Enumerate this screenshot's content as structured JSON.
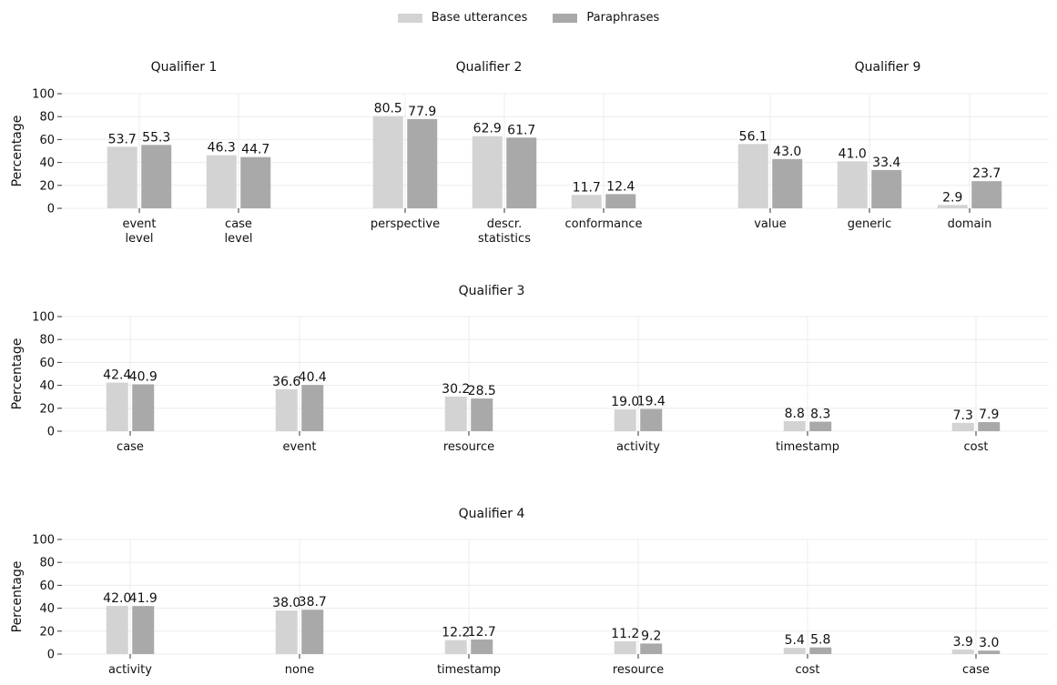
{
  "legend": {
    "base_label": "Base utterances",
    "para_label": "Paraphrases",
    "base_color": "#d3d3d3",
    "para_color": "#a9a9a9"
  },
  "chart_data": [
    {
      "type": "bar",
      "title": "Qualifier 1",
      "ylabel": "Percentage",
      "ylim": [
        0,
        100
      ],
      "yticks": [
        0,
        20,
        40,
        60,
        80,
        100
      ],
      "categories": [
        "event\nlevel",
        "case\nlevel"
      ],
      "series": [
        {
          "name": "Base utterances",
          "values": [
            53.7,
            46.3
          ],
          "labels": [
            "53.7",
            "46.3"
          ]
        },
        {
          "name": "Paraphrases",
          "values": [
            55.3,
            44.7
          ],
          "labels": [
            "55.3",
            "44.7"
          ]
        }
      ]
    },
    {
      "type": "bar",
      "title": "Qualifier 2",
      "ylim": [
        0,
        100
      ],
      "categories": [
        "perspective",
        "descr.\nstatistics",
        "conformance"
      ],
      "series": [
        {
          "name": "Base utterances",
          "values": [
            80.5,
            62.9,
            11.7
          ],
          "labels": [
            "80.5",
            "62.9",
            "11.7"
          ]
        },
        {
          "name": "Paraphrases",
          "values": [
            77.9,
            61.7,
            12.4
          ],
          "labels": [
            "77.9",
            "61.7",
            "12.4"
          ]
        }
      ]
    },
    {
      "type": "bar",
      "title": "Qualifier 9",
      "ylim": [
        0,
        100
      ],
      "categories": [
        "value",
        "generic",
        "domain"
      ],
      "series": [
        {
          "name": "Base utterances",
          "values": [
            56.1,
            41.0,
            2.9
          ],
          "labels": [
            "56.1",
            "41.0",
            "2.9"
          ]
        },
        {
          "name": "Paraphrases",
          "values": [
            43.0,
            33.4,
            23.7
          ],
          "labels": [
            "43.0",
            "33.4",
            "23.7"
          ]
        }
      ]
    },
    {
      "type": "bar",
      "title": "Qualifier 3",
      "ylabel": "Percentage",
      "ylim": [
        0,
        100
      ],
      "yticks": [
        0,
        20,
        40,
        60,
        80,
        100
      ],
      "categories": [
        "case",
        "event",
        "resource",
        "activity",
        "timestamp",
        "cost"
      ],
      "series": [
        {
          "name": "Base utterances",
          "values": [
            42.4,
            36.6,
            30.2,
            19.0,
            8.8,
            7.3
          ],
          "labels": [
            "42.4",
            "36.6",
            "30.2",
            "19.0",
            "8.8",
            "7.3"
          ]
        },
        {
          "name": "Paraphrases",
          "values": [
            40.9,
            40.4,
            28.5,
            19.4,
            8.3,
            7.9
          ],
          "labels": [
            "40.9",
            "40.4",
            "28.5",
            "19.4",
            "8.3",
            "7.9"
          ]
        }
      ]
    },
    {
      "type": "bar",
      "title": "Qualifier 4",
      "ylabel": "Percentage",
      "ylim": [
        0,
        100
      ],
      "yticks": [
        0,
        20,
        40,
        60,
        80,
        100
      ],
      "categories": [
        "activity",
        "none",
        "timestamp",
        "resource",
        "cost",
        "case"
      ],
      "series": [
        {
          "name": "Base utterances",
          "values": [
            42.0,
            38.0,
            12.2,
            11.2,
            5.4,
            3.9
          ],
          "labels": [
            "42.0",
            "38.0",
            "12.2",
            "11.2",
            "5.4",
            "3.9"
          ]
        },
        {
          "name": "Paraphrases",
          "values": [
            41.9,
            38.7,
            12.7,
            9.2,
            5.8,
            3.0
          ],
          "labels": [
            "41.9",
            "38.7",
            "12.7",
            "9.2",
            "5.8",
            "3.0"
          ]
        }
      ]
    }
  ]
}
